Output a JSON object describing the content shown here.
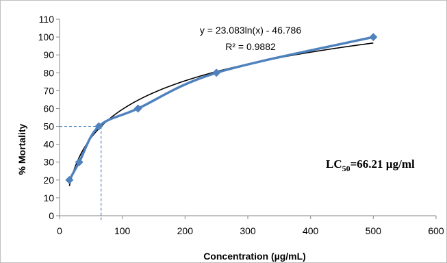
{
  "chart_data": {
    "type": "scatter",
    "xlabel": "Concentration (µg/mL)",
    "ylabel": "% Mortality",
    "xlim": [
      0,
      600
    ],
    "ylim": [
      0,
      110
    ],
    "xticks": [
      0,
      100,
      200,
      300,
      400,
      500,
      600
    ],
    "yticks": [
      0,
      10,
      20,
      30,
      40,
      50,
      60,
      70,
      80,
      90,
      100,
      110
    ],
    "grid": false,
    "series": [
      {
        "x": [
          15.625,
          31.25,
          62.5,
          125,
          250,
          500
        ],
        "y": [
          20,
          30,
          50,
          60,
          80,
          100
        ],
        "color": "#4f81bd",
        "marker": "diamond"
      }
    ],
    "trendline": {
      "type": "logarithmic",
      "a": 23.083,
      "b": -46.786,
      "x_range": [
        15.625,
        500
      ],
      "color": "#000000"
    },
    "annotations": {
      "equation": "y = 23.083ln(x) - 46.786",
      "r_squared": "R² = 0.9882",
      "lc50_prefix": "LC",
      "lc50_sub": "50",
      "lc50_value": "=66.21 µg/ml"
    },
    "reference_point": {
      "x": 66.21,
      "y": 50,
      "color": "#4f81bd"
    }
  }
}
